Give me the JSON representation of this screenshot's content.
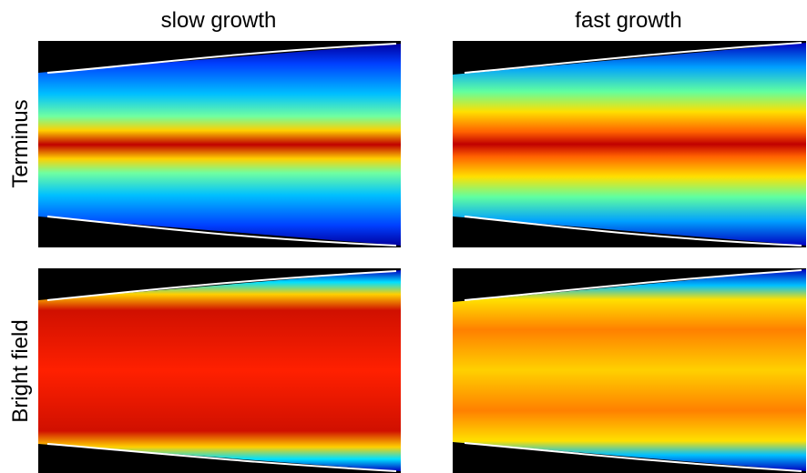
{
  "columns": [
    "slow growth",
    "fast growth"
  ],
  "rows": [
    "Terminus",
    "Bright field"
  ]
}
